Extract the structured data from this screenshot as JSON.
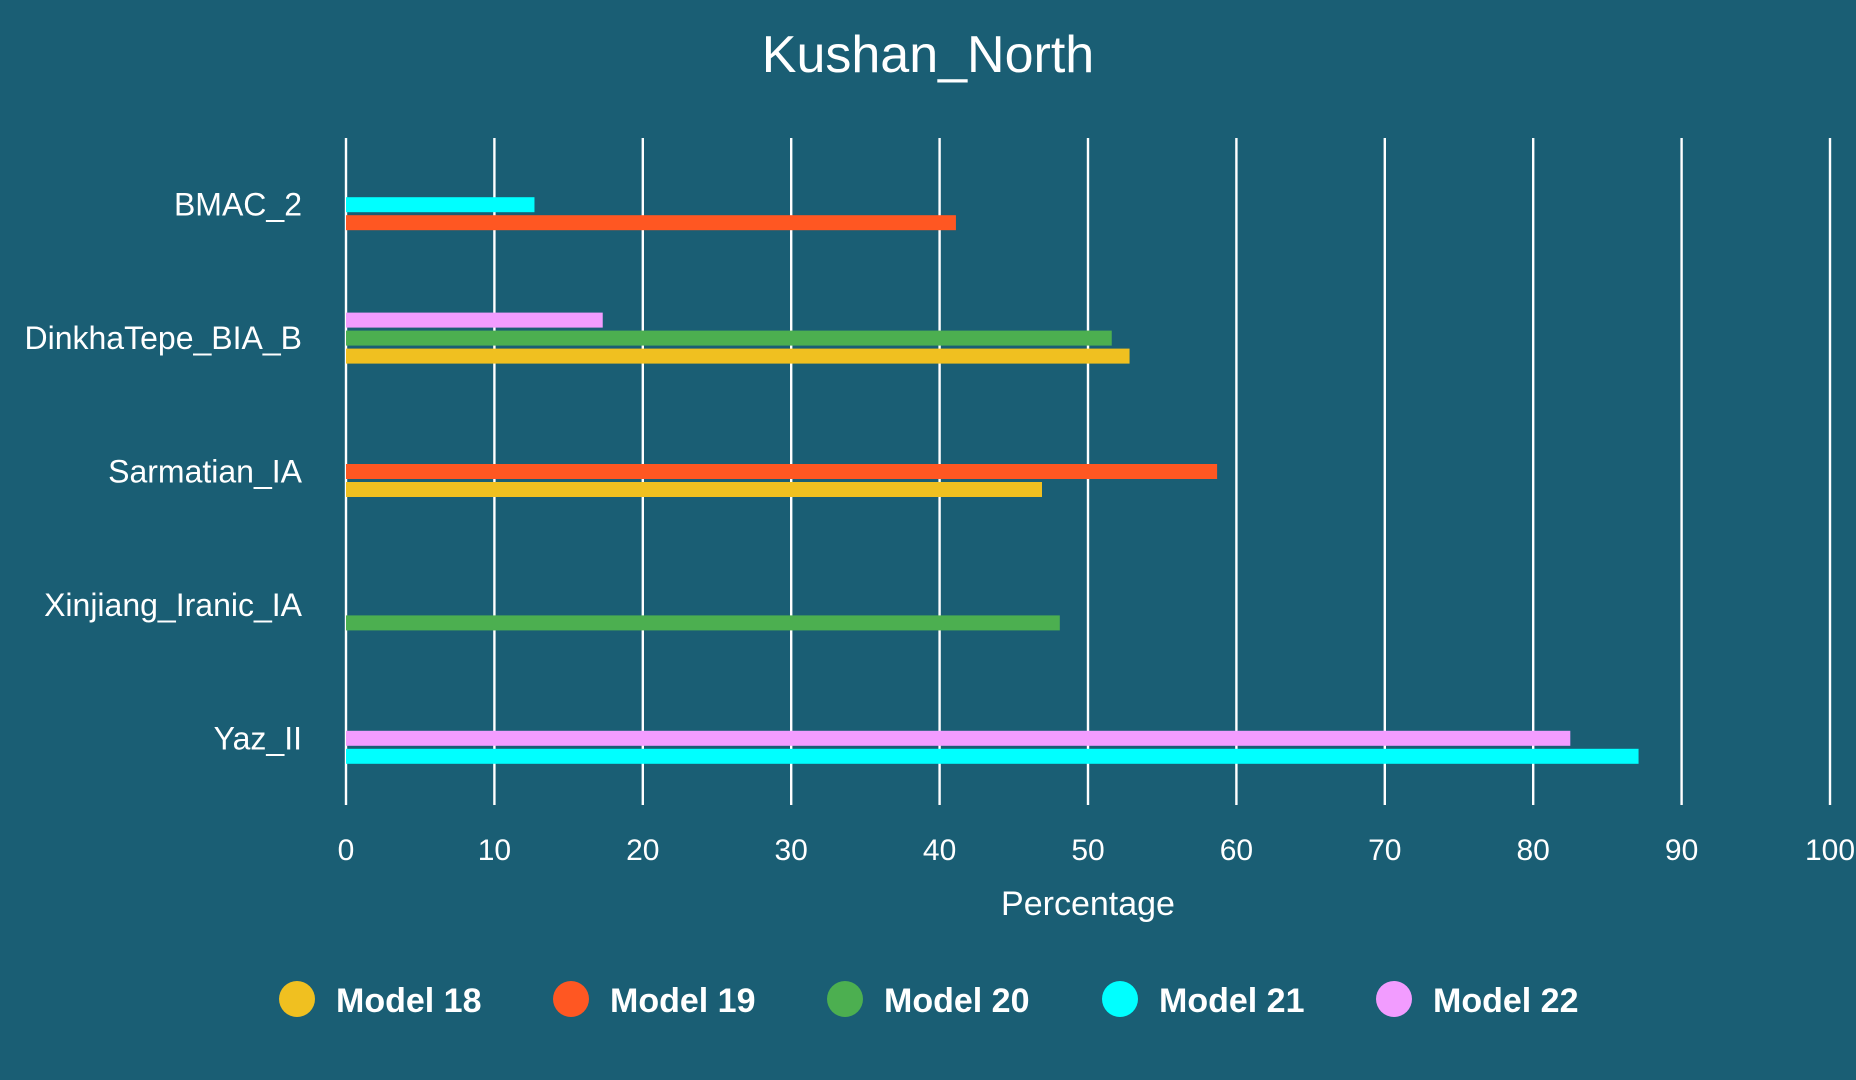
{
  "chart_data": {
    "type": "bar",
    "orientation": "horizontal",
    "title": "Kushan_North",
    "xlabel": "Percentage",
    "ylabel": "",
    "xlim": [
      0,
      100
    ],
    "xticks": [
      "0",
      "10",
      "20",
      "30",
      "40",
      "50",
      "60",
      "70",
      "80",
      "90",
      "100"
    ],
    "grid": true,
    "legend_position": "bottom",
    "categories": [
      "BMAC_2",
      "DinkhaTepe_BIA_B",
      "Sarmatian_IA",
      "Xinjiang_Iranic_IA",
      "Yaz_II"
    ],
    "series": [
      {
        "name": "Model 18",
        "color": "#f0c020",
        "values": [
          null,
          52.8,
          46.9,
          null,
          null
        ]
      },
      {
        "name": "Model 19",
        "color": "#ff5722",
        "values": [
          41.1,
          null,
          58.7,
          null,
          null
        ]
      },
      {
        "name": "Model 20",
        "color": "#4caf50",
        "values": [
          null,
          51.6,
          null,
          48.1,
          null
        ]
      },
      {
        "name": "Model 21",
        "color": "#00ffff",
        "values": [
          12.7,
          null,
          null,
          null,
          87.1
        ]
      },
      {
        "name": "Model 22",
        "color": "#f29cff",
        "values": [
          null,
          17.3,
          null,
          null,
          82.5
        ]
      }
    ]
  }
}
